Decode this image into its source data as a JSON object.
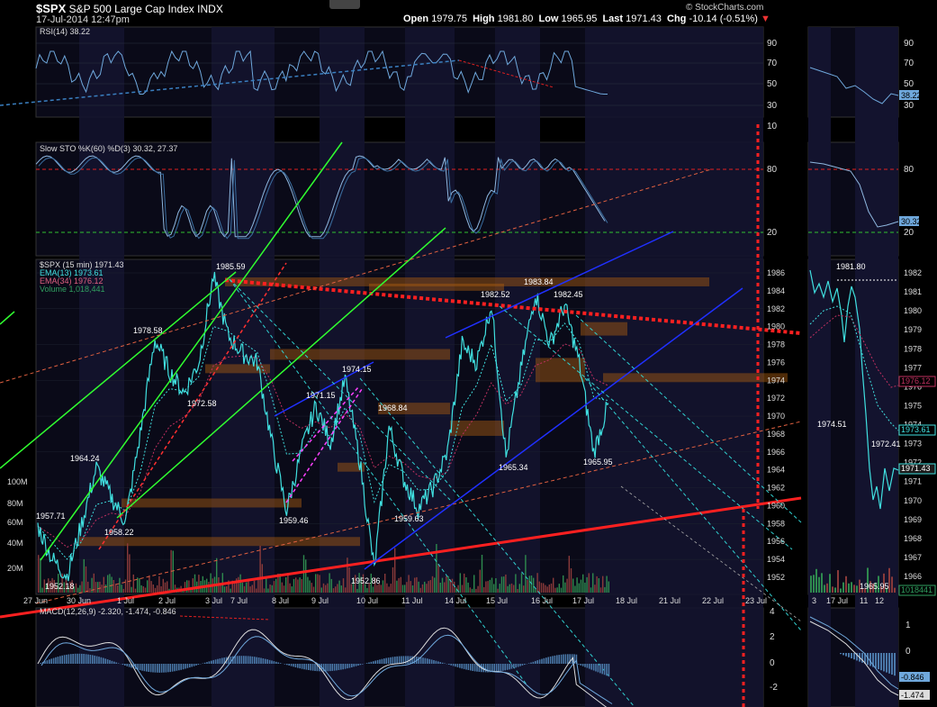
{
  "header": {
    "symbol": "$SPX",
    "name": "S&P 500 Large Cap Index",
    "exchange": "INDX",
    "datetime": "17-Jul-2014 12:47pm",
    "open_label": "Open",
    "open": "1979.75",
    "high_label": "High",
    "high": "1981.80",
    "low_label": "Low",
    "low": "1965.95",
    "last_label": "Last",
    "last": "1971.43",
    "chg_label": "Chg",
    "chg": "-10.14 (-0.51%)",
    "brand": "© StockCharts.com"
  },
  "rsi_panel": {
    "legend": "RSI(14) 38.22",
    "ticks": [
      "90",
      "70",
      "50",
      "30",
      "10"
    ],
    "right_ticks": [
      "90",
      "70",
      "50",
      "30"
    ],
    "right_value": "38.22"
  },
  "sto_panel": {
    "legend": "Slow STO %K(60) %D(3) 30.32, 27.37",
    "ticks": [
      "80",
      "20"
    ],
    "right_ticks": [
      "80",
      "20"
    ],
    "right_value": "30.32"
  },
  "price_panel": {
    "legend": [
      "$SPX (15 min) 1971.43",
      "EMA(13) 1973.61",
      "EMA(34) 1976.12",
      "Volume 1,018,441"
    ],
    "ticks": [
      "1986",
      "1984",
      "1982",
      "1980",
      "1978",
      "1976",
      "1974",
      "1972",
      "1970",
      "1968",
      "1966",
      "1964",
      "1962",
      "1960",
      "1958",
      "1956",
      "1954",
      "1952"
    ],
    "right_ticks": [
      "1982",
      "1981",
      "1980",
      "1979",
      "1978",
      "1977",
      "1976",
      "1975",
      "1974",
      "1973",
      "1972",
      "1971",
      "1970",
      "1969",
      "1968",
      "1967",
      "1966"
    ],
    "vol_ticks": [
      "100M",
      "80M",
      "60M",
      "40M",
      "20M"
    ],
    "right_labels": [
      "1976.12",
      "1973.61",
      "1971.43",
      "1018441"
    ],
    "right_annotations": [
      "1981.80",
      "1974.51",
      "1972.41",
      "1965.95"
    ],
    "x_labels": [
      "27 Jun",
      "30 Jun",
      "1 Jul",
      "2 Jul",
      "3 Jul",
      "7 Jul",
      "8 Jul",
      "9 Jul",
      "10 Jul",
      "11 Jul",
      "14 Jul",
      "15 Jul",
      "16 Jul",
      "17 Jul",
      "18 Jul",
      "21 Jul",
      "22 Jul",
      "23 Jul"
    ],
    "right_x_labels": [
      "3",
      "17 Jul",
      "11",
      "12"
    ]
  },
  "macd_panel": {
    "legend": "MACD(12,26,9) -2.320, -1.474, -0.846",
    "ticks": [
      "4",
      "2",
      "0",
      "-2"
    ],
    "right_ticks": [
      "1",
      "0",
      "-1"
    ],
    "right_labels": [
      "-0.846",
      "-1.474"
    ]
  },
  "chart_data": {
    "type": "line",
    "title": "$SPX S&P 500 Large Cap Index INDX",
    "interval": "15 min",
    "ylim": [
      1951,
      1987
    ],
    "annotations": [
      {
        "x": "27 Jun",
        "y": 1957.71,
        "label": "1957.71"
      },
      {
        "x": "30 Jun",
        "y": 1952.18,
        "label": "1952.18"
      },
      {
        "x": "30 Jun",
        "y": 1964.24,
        "label": "1964.24"
      },
      {
        "x": "1 Jul",
        "y": 1958.22,
        "label": "1958.22"
      },
      {
        "x": "1 Jul",
        "y": 1978.58,
        "label": "1978.58"
      },
      {
        "x": "2 Jul",
        "y": 1972.58,
        "label": "1972.58"
      },
      {
        "x": "3 Jul",
        "y": 1985.59,
        "label": "1985.59"
      },
      {
        "x": "8 Jul",
        "y": 1959.46,
        "label": "1959.46"
      },
      {
        "x": "9 Jul",
        "y": 1971.15,
        "label": "1971.15"
      },
      {
        "x": "9 Jul",
        "y": 1974.15,
        "label": "1974.15"
      },
      {
        "x": "10 Jul",
        "y": 1952.86,
        "label": "1952.86"
      },
      {
        "x": "10 Jul",
        "y": 1968.84,
        "label": "1968.84"
      },
      {
        "x": "11 Jul",
        "y": 1959.63,
        "label": "1959.63"
      },
      {
        "x": "15 Jul",
        "y": 1982.52,
        "label": "1982.52"
      },
      {
        "x": "15 Jul",
        "y": 1965.34,
        "label": "1965.34"
      },
      {
        "x": "16 Jul",
        "y": 1983.84,
        "label": "1983.84"
      },
      {
        "x": "16 Jul",
        "y": 1982.45,
        "label": "1982.45"
      },
      {
        "x": "17 Jul",
        "y": 1965.95,
        "label": "1965.95"
      }
    ],
    "series": [
      {
        "name": "$SPX",
        "color": "#40e0e0",
        "values": [
          1957.71,
          1954,
          1952.18,
          1958,
          1964.24,
          1961,
          1958.22,
          1968,
          1978.58,
          1975,
          1972.58,
          1976,
          1985.59,
          1979,
          1977,
          1976,
          1967,
          1959.46,
          1966,
          1971.15,
          1967,
          1974.15,
          1965,
          1952.86,
          1968.84,
          1963,
          1959.63,
          1962,
          1966,
          1978,
          1976,
          1982.52,
          1965.34,
          1975,
          1983.84,
          1978,
          1982.45,
          1976,
          1965.95,
          1971.43
        ]
      },
      {
        "name": "EMA(13)",
        "color": "#40e0e0"
      },
      {
        "name": "EMA(34)",
        "color": "#d04070"
      },
      {
        "name": "Volume",
        "color": "#30a060"
      }
    ],
    "colors": {
      "background": "#000000",
      "panel_shade": "#13132e",
      "price": "#40e0e0",
      "ema34": "#d04070",
      "trend_red": "#ff2020",
      "trend_green": "#30ff30",
      "trend_blue": "#2030ff",
      "channel_cyan": "#30d0d0",
      "zone_orange": "#b06010"
    }
  }
}
